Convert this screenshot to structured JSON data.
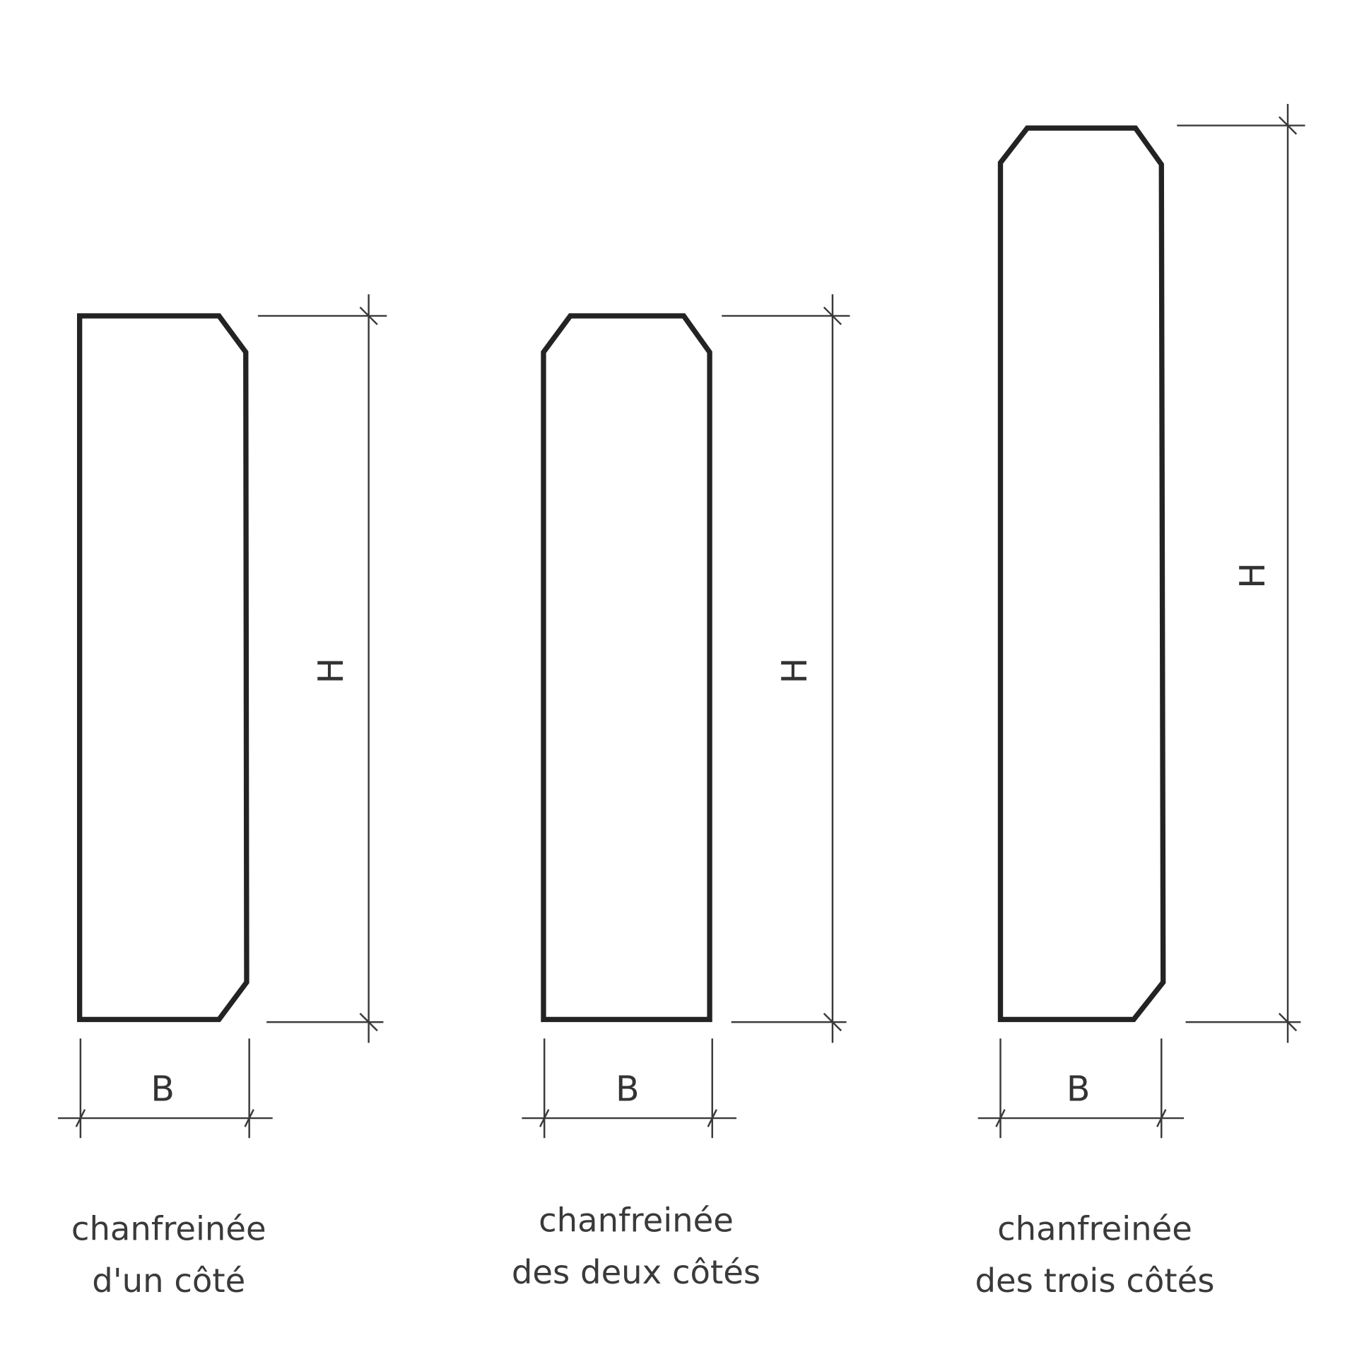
{
  "profiles": [
    {
      "caption": [
        "chanfreinée",
        "d'un côté"
      ],
      "height_label": "H",
      "width_label": "B"
    },
    {
      "caption": [
        "chanfreinée",
        "des deux côtés"
      ],
      "height_label": "H",
      "width_label": "B"
    },
    {
      "caption": [
        "chanfreinée",
        "des trois côtés"
      ],
      "height_label": "H",
      "width_label": "B"
    }
  ],
  "colors": {
    "outline": "#232323",
    "dimension": "#3a3a3a",
    "text": "#333333"
  }
}
